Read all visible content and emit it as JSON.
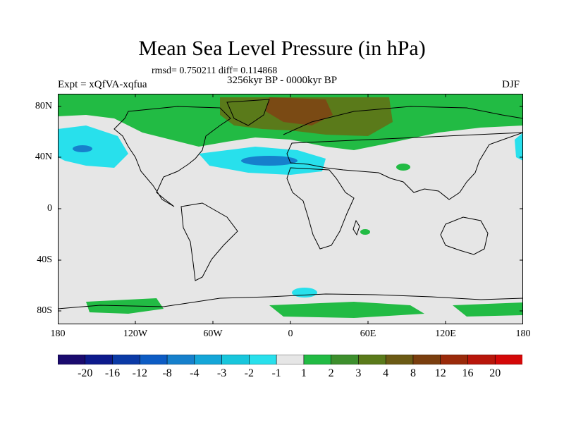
{
  "title": "Mean Sea Level Pressure (in hPa)",
  "stats": "rmsd= 0.750211 diff= 0.114868",
  "period": "3256kyr BP - 0000kyr BP",
  "experiment": "Expt = xQfVA-xqfua",
  "season": "DJF",
  "y_axis_labels": [
    "80N",
    "40N",
    "0",
    "40S",
    "80S"
  ],
  "x_axis_labels": [
    "180",
    "120W",
    "60W",
    "0",
    "60E",
    "120E",
    "180"
  ],
  "colorbar": {
    "colors": [
      "#1a0a6e",
      "#0d1a8c",
      "#0b3aa6",
      "#0d5cc4",
      "#1680cc",
      "#14a6d8",
      "#18c6dc",
      "#28e0ec",
      "#e6e6e6",
      "#22bb44",
      "#3d8f2d",
      "#5a7a1a",
      "#6b5a14",
      "#7a3e0e",
      "#9a2a0a",
      "#b8160a",
      "#d40808"
    ],
    "labels": [
      "-20",
      "-16",
      "-12",
      "-8",
      "-4",
      "-3",
      "-2",
      "-1",
      "1",
      "2",
      "3",
      "4",
      "8",
      "12",
      "16",
      "20"
    ]
  },
  "map_colors": {
    "background": "#e6e6e6",
    "green": "#22bb44",
    "olive": "#5a7a1a",
    "brown": "#7a4a14",
    "cyan": "#28e0ec",
    "blue": "#1680cc"
  }
}
